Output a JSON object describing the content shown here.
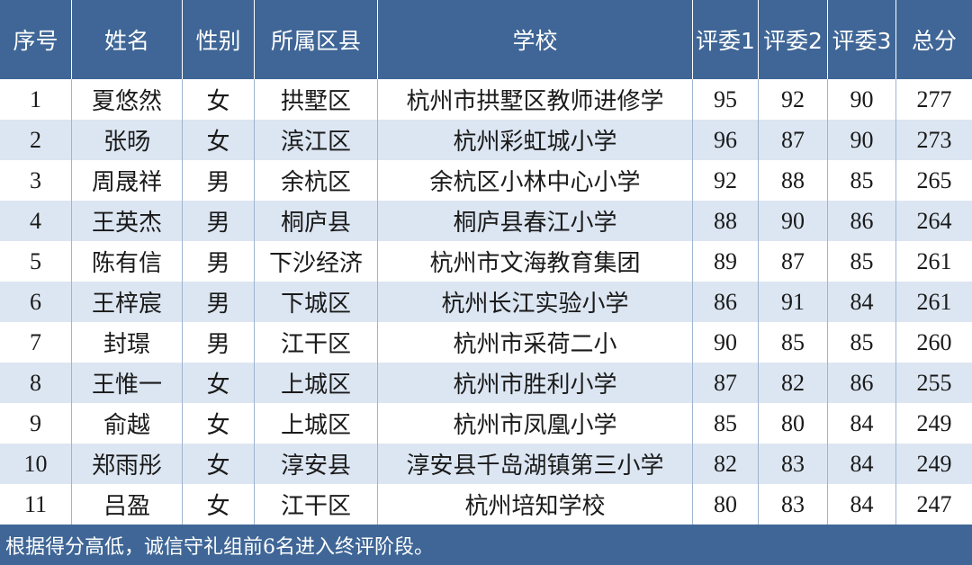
{
  "table": {
    "header": [
      "序号",
      "姓名",
      "性别",
      "所属区县",
      "学校",
      "评委1",
      "评委2",
      "评委3",
      "总分"
    ],
    "rows": [
      [
        1,
        "夏悠然",
        "女",
        "拱墅区",
        "杭州市拱墅区教师进修学",
        95,
        92,
        90,
        277
      ],
      [
        2,
        "张旸",
        "女",
        "滨江区",
        "杭州彩虹城小学",
        96,
        87,
        90,
        273
      ],
      [
        3,
        "周晟祥",
        "男",
        "余杭区",
        "余杭区小林中心小学",
        92,
        88,
        85,
        265
      ],
      [
        4,
        "王英杰",
        "男",
        "桐庐县",
        "桐庐县春江小学",
        88,
        90,
        86,
        264
      ],
      [
        5,
        "陈有信",
        "男",
        "下沙经济",
        "杭州市文海教育集团",
        89,
        87,
        85,
        261
      ],
      [
        6,
        "王梓宸",
        "男",
        "下城区",
        "杭州长江实验小学",
        86,
        91,
        84,
        261
      ],
      [
        7,
        "封璟",
        "男",
        "江干区",
        "杭州市采荷二小",
        90,
        85,
        85,
        260
      ],
      [
        8,
        "王惟一",
        "女",
        "上城区",
        "杭州市胜利小学",
        87,
        82,
        86,
        255
      ],
      [
        9,
        "俞越",
        "女",
        "上城区",
        "杭州市凤凰小学",
        85,
        80,
        84,
        249
      ],
      [
        10,
        "郑雨彤",
        "女",
        "淳安县",
        "淳安县千岛湖镇第三小学",
        82,
        83,
        84,
        249
      ],
      [
        11,
        "吕盈",
        "女",
        "江干区",
        "杭州培知学校",
        80,
        83,
        84,
        247
      ]
    ],
    "footer": "根据得分高低，诚信守礼组前6名进入终评阶段。"
  }
}
